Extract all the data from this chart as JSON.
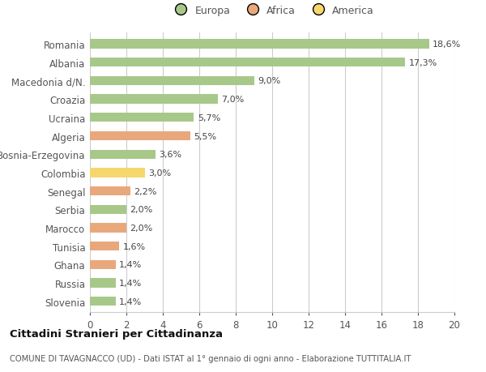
{
  "categories": [
    "Slovenia",
    "Russia",
    "Ghana",
    "Tunisia",
    "Marocco",
    "Serbia",
    "Senegal",
    "Colombia",
    "Bosnia-Erzegovina",
    "Algeria",
    "Ucraina",
    "Croazia",
    "Macedonia d/N.",
    "Albania",
    "Romania"
  ],
  "values": [
    1.4,
    1.4,
    1.4,
    1.6,
    2.0,
    2.0,
    2.2,
    3.0,
    3.6,
    5.5,
    5.7,
    7.0,
    9.0,
    17.3,
    18.6
  ],
  "continents": [
    "Europa",
    "Europa",
    "Africa",
    "Africa",
    "Africa",
    "Europa",
    "Africa",
    "America",
    "Europa",
    "Africa",
    "Europa",
    "Europa",
    "Europa",
    "Europa",
    "Europa"
  ],
  "bar_colors": {
    "Europa": "#a8c88a",
    "Africa": "#e8a87c",
    "America": "#f5d76e"
  },
  "background_color": "#ffffff",
  "grid_color": "#cccccc",
  "title1": "Cittadini Stranieri per Cittadinanza",
  "title2": "COMUNE DI TAVAGNACCO (UD) - Dati ISTAT al 1° gennaio di ogni anno - Elaborazione TUTTITALIA.IT",
  "xlim": [
    0,
    20
  ],
  "xticks": [
    0,
    2,
    4,
    6,
    8,
    10,
    12,
    14,
    16,
    18,
    20
  ],
  "bar_height": 0.5,
  "figsize": [
    6.0,
    4.6
  ],
  "dpi": 100
}
